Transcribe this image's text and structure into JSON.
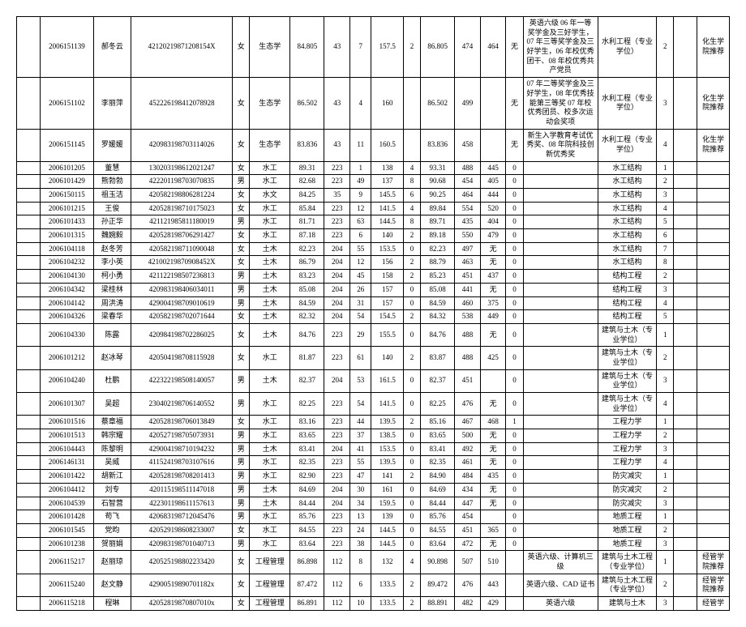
{
  "columns": [
    "blank",
    "id",
    "name",
    "idnum",
    "sex",
    "major",
    "n1",
    "n2",
    "n3",
    "n4",
    "n5",
    "n6",
    "n7",
    "n8",
    "n9",
    "notes",
    "prog",
    "rank",
    "sp",
    "rec"
  ],
  "rows": [
    {
      "id": "2006151139",
      "name": "郝冬云",
      "idnum": "42120219871208154X",
      "sex": "女",
      "major": "生态学",
      "n1": "84.805",
      "n2": "43",
      "n3": "7",
      "n4": "157.5",
      "n5": "2",
      "n6": "86.805",
      "n7": "474",
      "n8": "464",
      "n9": "无",
      "notes": "英语六级\n06 年一等奖学金及三好学生，07 年三等奖学金及三好学生，06 年校优秀团干、08 年校优秀共产党员",
      "prog": "水利工程（专业学位）",
      "rank": "2",
      "sp": "",
      "rec": "化生学院推荐"
    },
    {
      "id": "2006151102",
      "name": "李丽萍",
      "idnum": "452226198412078928",
      "sex": "女",
      "major": "生态学",
      "n1": "86.502",
      "n2": "43",
      "n3": "4",
      "n4": "160",
      "n5": "",
      "n6": "86.502",
      "n7": "499",
      "n8": "",
      "n9": "无",
      "notes": "07 年二等奖学金及三好学生，08 年优秀技能第三等奖 07 年校优秀团员、校多次运动会奖项",
      "prog": "水利工程（专业学位）",
      "rank": "3",
      "sp": "",
      "rec": "化生学院推荐"
    },
    {
      "id": "2006151145",
      "name": "罗媛媛",
      "idnum": "420983198703114026",
      "sex": "女",
      "major": "生态学",
      "n1": "83.836",
      "n2": "43",
      "n3": "11",
      "n4": "160.5",
      "n5": "",
      "n6": "83.836",
      "n7": "458",
      "n8": "",
      "n9": "无",
      "notes": "新生入学教育考试优秀奖、08 年院科技创新优秀奖",
      "prog": "水利工程（专业学位）",
      "rank": "4",
      "sp": "",
      "rec": "化生学院推荐"
    },
    {
      "id": "2006101205",
      "name": "董慧",
      "idnum": "130203198612021247",
      "sex": "女",
      "major": "水工",
      "n1": "89.31",
      "n2": "223",
      "n3": "1",
      "n4": "138",
      "n5": "4",
      "n6": "93.31",
      "n7": "488",
      "n8": "445",
      "n9": "0",
      "notes": "",
      "prog": "水工结构",
      "rank": "1",
      "sp": "",
      "rec": ""
    },
    {
      "id": "2006101429",
      "name": "熊勃勃",
      "idnum": "422201198703070835",
      "sex": "男",
      "major": "水工",
      "n1": "82.68",
      "n2": "223",
      "n3": "49",
      "n4": "137",
      "n5": "8",
      "n6": "90.68",
      "n7": "454",
      "n8": "405",
      "n9": "0",
      "notes": "",
      "prog": "水工结构",
      "rank": "2",
      "sp": "",
      "rec": ""
    },
    {
      "id": "2006150115",
      "name": "祖玉洁",
      "idnum": "420582198806281224",
      "sex": "女",
      "major": "水文",
      "n1": "84.25",
      "n2": "35",
      "n3": "9",
      "n4": "145.5",
      "n5": "6",
      "n6": "90.25",
      "n7": "464",
      "n8": "444",
      "n9": "0",
      "notes": "",
      "prog": "水工结构",
      "rank": "3",
      "sp": "",
      "rec": ""
    },
    {
      "id": "2006101215",
      "name": "王俊",
      "idnum": "420528198710175023",
      "sex": "女",
      "major": "水工",
      "n1": "85.84",
      "n2": "223",
      "n3": "12",
      "n4": "141.5",
      "n5": "4",
      "n6": "89.84",
      "n7": "554",
      "n8": "520",
      "n9": "0",
      "notes": "",
      "prog": "水工结构",
      "rank": "4",
      "sp": "",
      "rec": ""
    },
    {
      "id": "2006101433",
      "name": "孙正华",
      "idnum": "421121985811180019",
      "sex": "男",
      "major": "水工",
      "n1": "81.71",
      "n2": "223",
      "n3": "63",
      "n4": "144.5",
      "n5": "8",
      "n6": "89.71",
      "n7": "435",
      "n8": "404",
      "n9": "0",
      "notes": "",
      "prog": "水工结构",
      "rank": "5",
      "sp": "",
      "rec": ""
    },
    {
      "id": "2006101315",
      "name": "魏婉毅",
      "idnum": "420528198706291427",
      "sex": "女",
      "major": "水工",
      "n1": "87.18",
      "n2": "223",
      "n3": "6",
      "n4": "140",
      "n5": "2",
      "n6": "89.18",
      "n7": "550",
      "n8": "479",
      "n9": "0",
      "notes": "",
      "prog": "水工结构",
      "rank": "6",
      "sp": "",
      "rec": ""
    },
    {
      "id": "2006104118",
      "name": "赵冬芳",
      "idnum": "420582198711090048",
      "sex": "女",
      "major": "土木",
      "n1": "82.23",
      "n2": "204",
      "n3": "55",
      "n4": "153.5",
      "n5": "0",
      "n6": "82.23",
      "n7": "497",
      "n8": "无",
      "n9": "0",
      "notes": "",
      "prog": "水工结构",
      "rank": "7",
      "sp": "",
      "rec": ""
    },
    {
      "id": "2006104232",
      "name": "李小英",
      "idnum": "42100219870908452X",
      "sex": "女",
      "major": "土木",
      "n1": "86.79",
      "n2": "204",
      "n3": "12",
      "n4": "156",
      "n5": "2",
      "n6": "88.79",
      "n7": "463",
      "n8": "无",
      "n9": "0",
      "notes": "",
      "prog": "水工结构",
      "rank": "8",
      "sp": "",
      "rec": ""
    },
    {
      "id": "2006104130",
      "name": "柯小勇",
      "idnum": "421122198507236813",
      "sex": "男",
      "major": "土木",
      "n1": "83.23",
      "n2": "204",
      "n3": "45",
      "n4": "158",
      "n5": "2",
      "n6": "85.23",
      "n7": "451",
      "n8": "437",
      "n9": "0",
      "notes": "",
      "prog": "结构工程",
      "rank": "2",
      "sp": "",
      "rec": ""
    },
    {
      "id": "2006104342",
      "name": "梁桂林",
      "idnum": "420983198406034011",
      "sex": "男",
      "major": "土木",
      "n1": "85.08",
      "n2": "204",
      "n3": "26",
      "n4": "157",
      "n5": "0",
      "n6": "85.08",
      "n7": "441",
      "n8": "无",
      "n9": "0",
      "notes": "",
      "prog": "结构工程",
      "rank": "3",
      "sp": "",
      "rec": ""
    },
    {
      "id": "2006104142",
      "name": "周洪涛",
      "idnum": "429004198709010619",
      "sex": "男",
      "major": "土木",
      "n1": "84.59",
      "n2": "204",
      "n3": "31",
      "n4": "157",
      "n5": "0",
      "n6": "84.59",
      "n7": "460",
      "n8": "375",
      "n9": "0",
      "notes": "",
      "prog": "结构工程",
      "rank": "4",
      "sp": "",
      "rec": ""
    },
    {
      "id": "2006104326",
      "name": "梁春华",
      "idnum": "420582198702071644",
      "sex": "女",
      "major": "土木",
      "n1": "82.32",
      "n2": "204",
      "n3": "54",
      "n4": "154.5",
      "n5": "2",
      "n6": "84.32",
      "n7": "538",
      "n8": "449",
      "n9": "0",
      "notes": "",
      "prog": "结构工程",
      "rank": "5",
      "sp": "",
      "rec": ""
    },
    {
      "id": "2006104330",
      "name": "陈露",
      "idnum": "420984198702286025",
      "sex": "女",
      "major": "土木",
      "n1": "84.76",
      "n2": "223",
      "n3": "29",
      "n4": "155.5",
      "n5": "0",
      "n6": "84.76",
      "n7": "488",
      "n8": "无",
      "n9": "0",
      "notes": "",
      "prog": "建筑与土木（专业学位）",
      "rank": "1",
      "sp": "",
      "rec": ""
    },
    {
      "id": "2006101212",
      "name": "赵冰琴",
      "idnum": "420504198708115928",
      "sex": "女",
      "major": "水工",
      "n1": "81.87",
      "n2": "223",
      "n3": "61",
      "n4": "140",
      "n5": "2",
      "n6": "83.87",
      "n7": "488",
      "n8": "425",
      "n9": "0",
      "notes": "",
      "prog": "建筑与土木（专业学位）",
      "rank": "2",
      "sp": "",
      "rec": ""
    },
    {
      "id": "2006104240",
      "name": "杜鹏",
      "idnum": "422322198508140057",
      "sex": "男",
      "major": "土木",
      "n1": "82.37",
      "n2": "204",
      "n3": "53",
      "n4": "161.5",
      "n5": "0",
      "n6": "82.37",
      "n7": "451",
      "n8": "",
      "n9": "0",
      "notes": "",
      "prog": "建筑与土木（专业学位）",
      "rank": "3",
      "sp": "",
      "rec": ""
    },
    {
      "id": "2006101307",
      "name": "吴超",
      "idnum": "230402198706140552",
      "sex": "男",
      "major": "水工",
      "n1": "82.25",
      "n2": "223",
      "n3": "54",
      "n4": "141.5",
      "n5": "0",
      "n6": "82.25",
      "n7": "476",
      "n8": "无",
      "n9": "0",
      "notes": "",
      "prog": "建筑与土木（专业学位）",
      "rank": "4",
      "sp": "",
      "rec": ""
    },
    {
      "id": "2006101516",
      "name": "蔡章福",
      "idnum": "420528198706013849",
      "sex": "女",
      "major": "水工",
      "n1": "83.16",
      "n2": "223",
      "n3": "44",
      "n4": "139.5",
      "n5": "2",
      "n6": "85.16",
      "n7": "467",
      "n8": "468",
      "n9": "1",
      "notes": "",
      "prog": "工程力学",
      "rank": "1",
      "sp": "",
      "rec": ""
    },
    {
      "id": "2006101513",
      "name": "韩宗耀",
      "idnum": "420527198705073931",
      "sex": "男",
      "major": "水工",
      "n1": "83.65",
      "n2": "223",
      "n3": "37",
      "n4": "138.5",
      "n5": "0",
      "n6": "83.65",
      "n7": "500",
      "n8": "无",
      "n9": "0",
      "notes": "",
      "prog": "工程力学",
      "rank": "2",
      "sp": "",
      "rec": ""
    },
    {
      "id": "2006104443",
      "name": "陈黎明",
      "idnum": "429004198710194232",
      "sex": "男",
      "major": "土木",
      "n1": "83.41",
      "n2": "204",
      "n3": "41",
      "n4": "153.5",
      "n5": "0",
      "n6": "83.41",
      "n7": "492",
      "n8": "无",
      "n9": "0",
      "notes": "",
      "prog": "工程力学",
      "rank": "3",
      "sp": "",
      "rec": ""
    },
    {
      "id": "2006146131",
      "name": "吴威",
      "idnum": "411524198703107616",
      "sex": "男",
      "major": "水工",
      "n1": "82.35",
      "n2": "223",
      "n3": "55",
      "n4": "139.5",
      "n5": "0",
      "n6": "82.35",
      "n7": "461",
      "n8": "无",
      "n9": "0",
      "notes": "",
      "prog": "工程力学",
      "rank": "4",
      "sp": "",
      "rec": ""
    },
    {
      "id": "2006101422",
      "name": "胡新江",
      "idnum": "420528198708201413",
      "sex": "男",
      "major": "水工",
      "n1": "82.90",
      "n2": "223",
      "n3": "47",
      "n4": "141",
      "n5": "2",
      "n6": "84.90",
      "n7": "484",
      "n8": "435",
      "n9": "0",
      "notes": "",
      "prog": "防灾减灾",
      "rank": "1",
      "sp": "",
      "rec": ""
    },
    {
      "id": "2006104412",
      "name": "刘专",
      "idnum": "420115198511147018",
      "sex": "男",
      "major": "土木",
      "n1": "84.69",
      "n2": "204",
      "n3": "30",
      "n4": "161",
      "n5": "0",
      "n6": "84.69",
      "n7": "434",
      "n8": "无",
      "n9": "0",
      "notes": "",
      "prog": "防灾减灾",
      "rank": "2",
      "sp": "",
      "rec": ""
    },
    {
      "id": "2006104539",
      "name": "石智营",
      "idnum": "422301198611157613",
      "sex": "男",
      "major": "土木",
      "n1": "84.44",
      "n2": "204",
      "n3": "34",
      "n4": "159.5",
      "n5": "0",
      "n6": "84.44",
      "n7": "447",
      "n8": "无",
      "n9": "0",
      "notes": "",
      "prog": "防灾减灾",
      "rank": "3",
      "sp": "",
      "rec": ""
    },
    {
      "id": "2006101428",
      "name": "苟飞",
      "idnum": "420683198712045476",
      "sex": "男",
      "major": "水工",
      "n1": "85.76",
      "n2": "223",
      "n3": "13",
      "n4": "139",
      "n5": "0",
      "n6": "85.76",
      "n7": "454",
      "n8": "",
      "n9": "0",
      "notes": "",
      "prog": "地质工程",
      "rank": "1",
      "sp": "",
      "rec": ""
    },
    {
      "id": "2006101545",
      "name": "党昀",
      "idnum": "420529198608233007",
      "sex": "女",
      "major": "水工",
      "n1": "84.55",
      "n2": "223",
      "n3": "24",
      "n4": "144.5",
      "n5": "0",
      "n6": "84.55",
      "n7": "451",
      "n8": "365",
      "n9": "0",
      "notes": "",
      "prog": "地质工程",
      "rank": "2",
      "sp": "",
      "rec": ""
    },
    {
      "id": "2006101238",
      "name": "贺丽娟",
      "idnum": "420983198701040713",
      "sex": "男",
      "major": "水工",
      "n1": "83.64",
      "n2": "223",
      "n3": "38",
      "n4": "144.5",
      "n5": "0",
      "n6": "83.64",
      "n7": "472",
      "n8": "无",
      "n9": "0",
      "notes": "",
      "prog": "地质工程",
      "rank": "3",
      "sp": "",
      "rec": ""
    },
    {
      "id": "2006115217",
      "name": "赵丽琼",
      "idnum": "420525198802233420",
      "sex": "女",
      "major": "工程管理",
      "n1": "86.898",
      "n2": "112",
      "n3": "8",
      "n4": "132",
      "n5": "4",
      "n6": "90.898",
      "n7": "507",
      "n8": "510",
      "n9": "",
      "notes": "英语六级、计算机三级",
      "prog": "建筑与土木工程（专业学位）",
      "rank": "1",
      "sp": "",
      "rec": "经管学院推荐"
    },
    {
      "id": "2006115240",
      "name": "赵文静",
      "idnum": "42900519890701182x",
      "sex": "女",
      "major": "工程管理",
      "n1": "87.472",
      "n2": "112",
      "n3": "6",
      "n4": "133.5",
      "n5": "2",
      "n6": "89.472",
      "n7": "476",
      "n8": "443",
      "n9": "",
      "notes": "英语六级、CAD 证书",
      "prog": "建筑与土木工程（专业学位）",
      "rank": "2",
      "sp": "",
      "rec": "经管学院推荐"
    },
    {
      "id": "2006115218",
      "name": "程琳",
      "idnum": "42052819870807010x",
      "sex": "女",
      "major": "工程管理",
      "n1": "86.891",
      "n2": "112",
      "n3": "10",
      "n4": "133.5",
      "n5": "2",
      "n6": "88.891",
      "n7": "482",
      "n8": "429",
      "n9": "",
      "notes": "英语六级",
      "prog": "建筑与土木",
      "rank": "3",
      "sp": "",
      "rec": "经管学"
    }
  ]
}
